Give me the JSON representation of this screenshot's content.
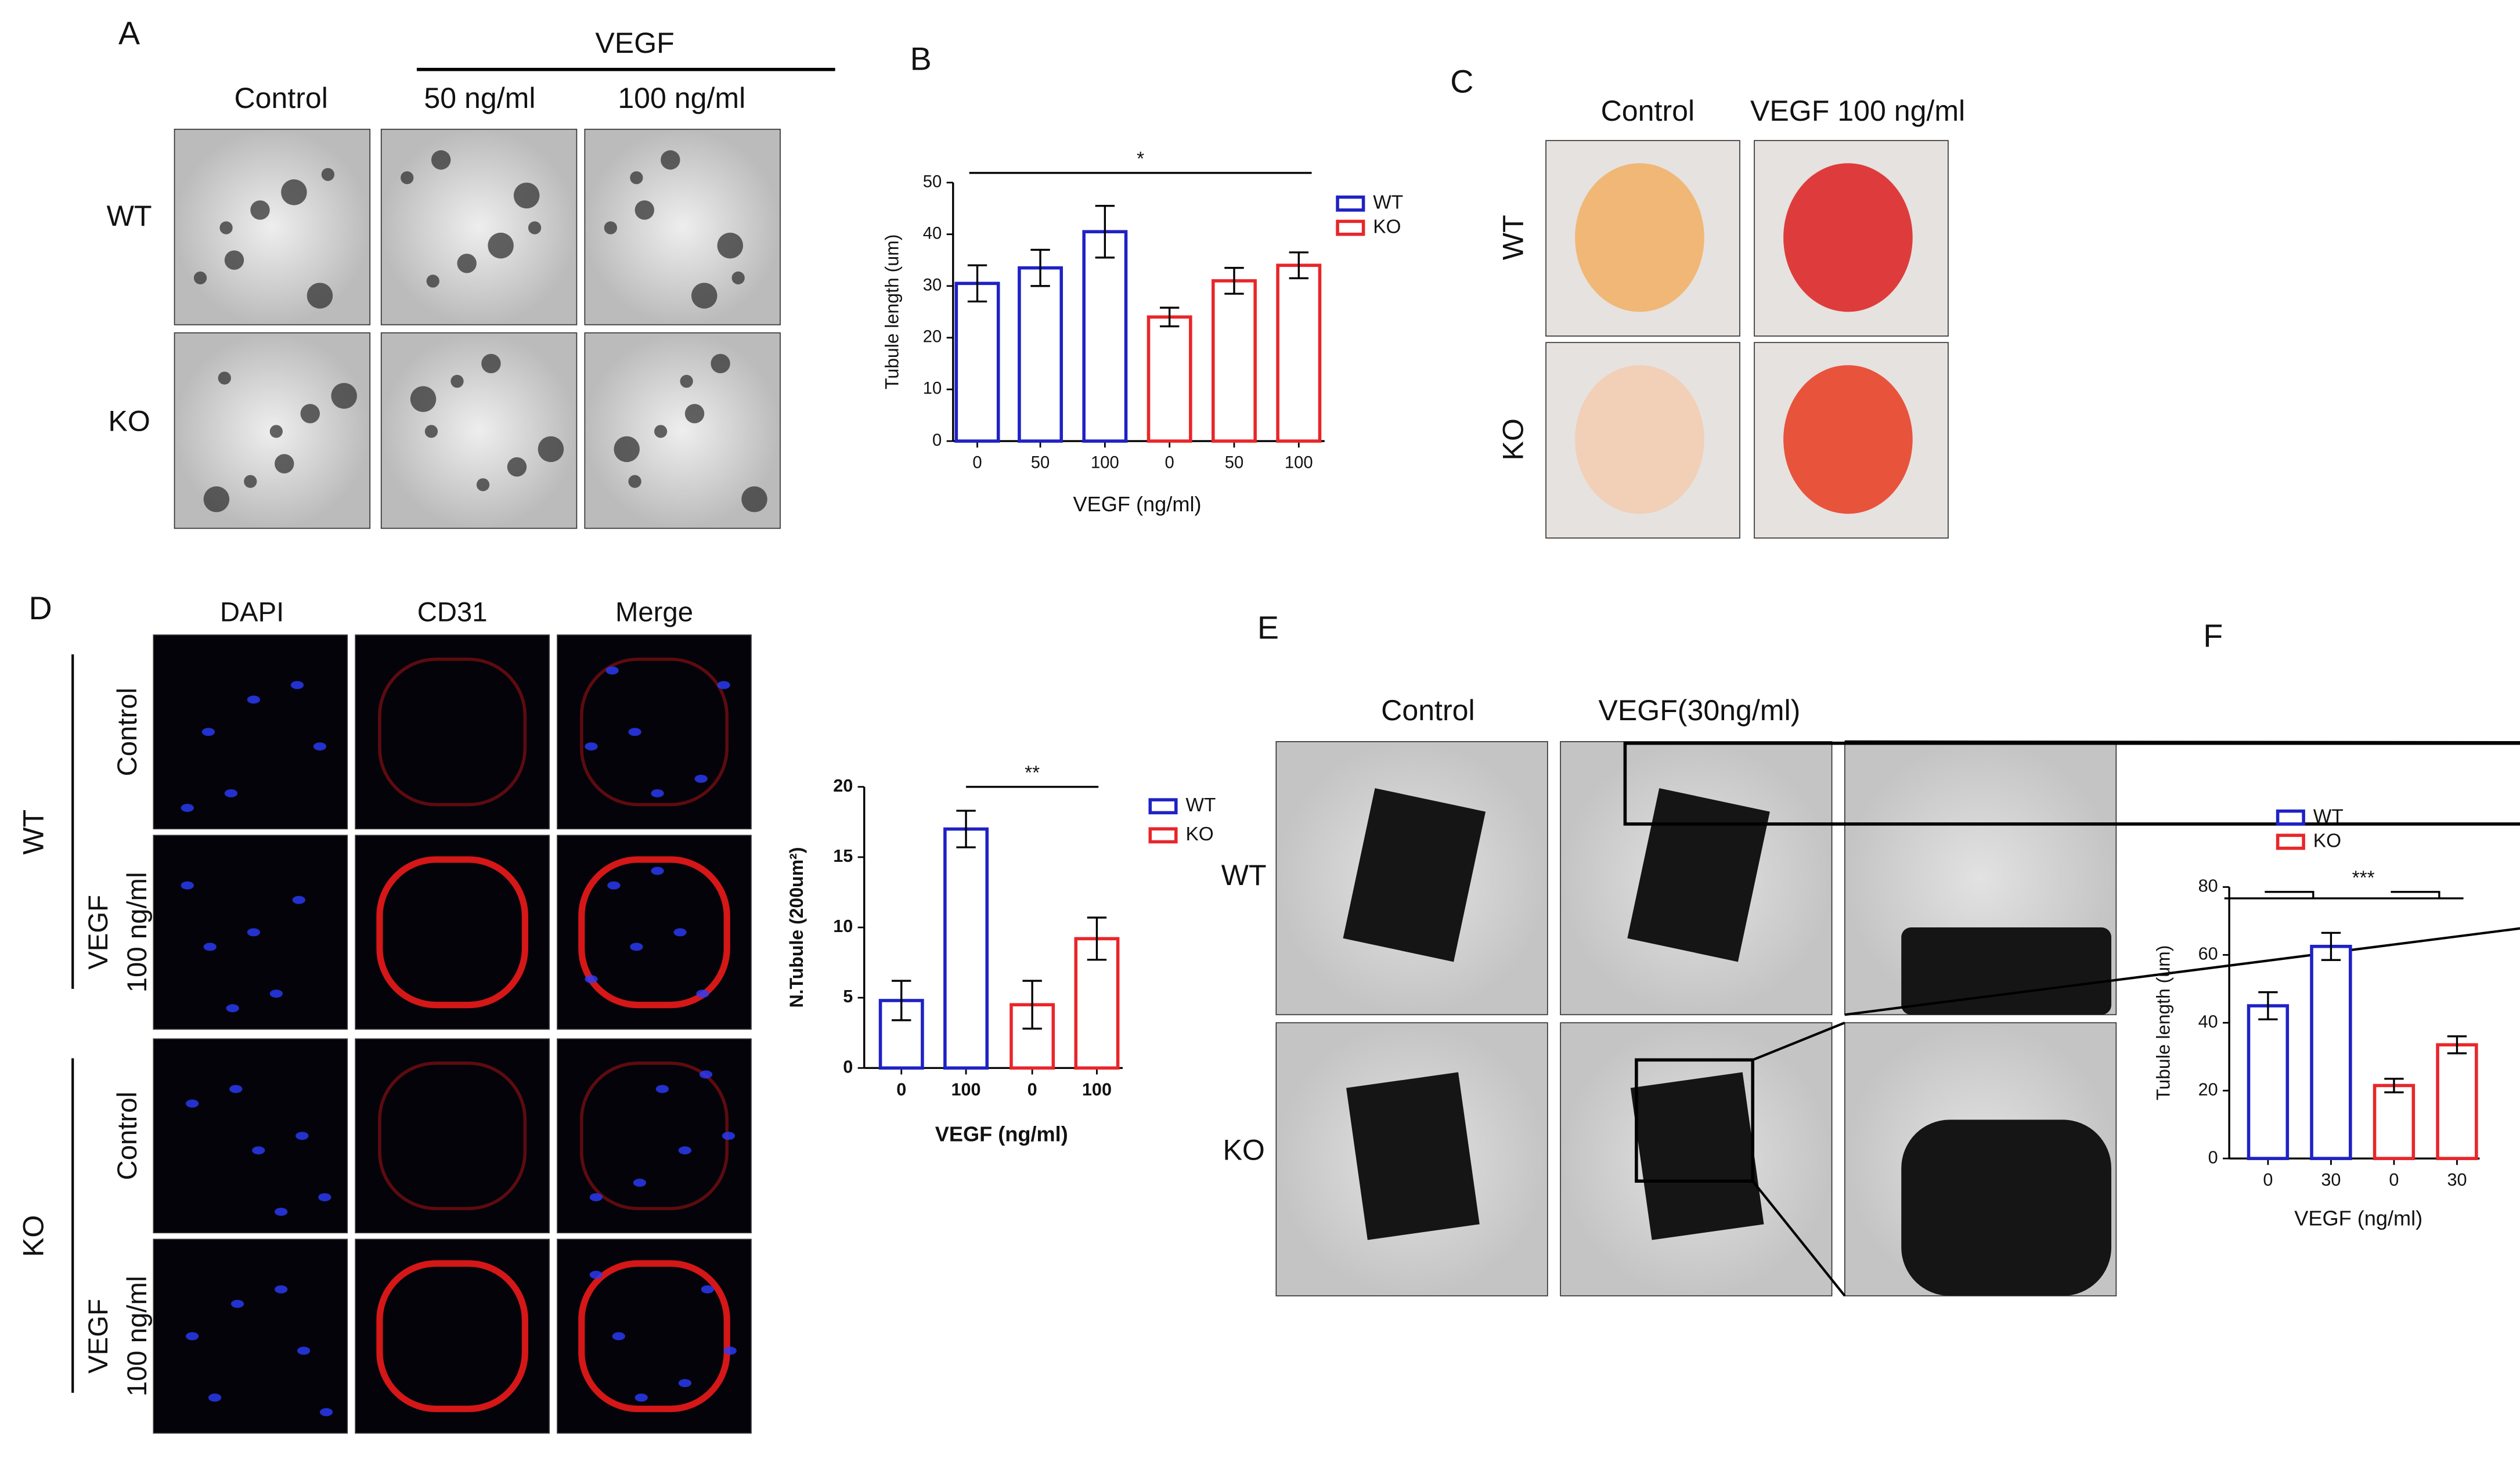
{
  "panels": {
    "labels": [
      "A",
      "B",
      "C",
      "D",
      "E",
      "F"
    ]
  },
  "panel_a": {
    "group": "VEGF",
    "columns": [
      "Control",
      "50 ng/ml",
      "100 ng/ml"
    ],
    "rows": [
      "WT",
      "KO"
    ]
  },
  "panel_c": {
    "columns": [
      "Control",
      "VEGF 100 ng/ml"
    ],
    "rows": [
      "WT",
      "KO"
    ]
  },
  "panel_d": {
    "columns": [
      "DAPI",
      "CD31",
      "Merge"
    ],
    "groups": [
      {
        "name": "WT",
        "rows": [
          {
            "lines": [
              "Control"
            ]
          },
          {
            "lines": [
              "VEGF",
              "100 ng/ml"
            ]
          }
        ]
      },
      {
        "name": "KO",
        "rows": [
          {
            "lines": [
              "Control"
            ]
          },
          {
            "lines": [
              "VEGF",
              "100 ng/ml"
            ]
          }
        ]
      }
    ]
  },
  "panel_e": {
    "columns": [
      "Control",
      "VEGF(30ng/ml)"
    ],
    "rows": [
      "WT",
      "KO"
    ]
  },
  "chart_data": [
    {
      "type": "bar",
      "ylabel": "Tubule length (um)",
      "xlabel": "VEGF (ng/ml)",
      "annotation": "*",
      "categories": [
        "0",
        "50",
        "100",
        "0",
        "50",
        "100"
      ],
      "series": [
        {
          "name": "WT",
          "color": "#1f22c4",
          "values": [
            30.5,
            33.5,
            40.5,
            null,
            null,
            null
          ],
          "errors": [
            3.5,
            3.5,
            5,
            null,
            null,
            null
          ]
        },
        {
          "name": "KO",
          "color": "#e8262a",
          "values": [
            null,
            null,
            null,
            24,
            31,
            34
          ],
          "errors": [
            null,
            null,
            null,
            1.8,
            2.5,
            2.5
          ]
        }
      ],
      "ylim": [
        0,
        50
      ],
      "yticks": [
        0,
        10,
        20,
        30,
        40,
        50
      ]
    },
    {
      "type": "bar",
      "ylabel": "N.Tubule (200um²)",
      "xlabel": "VEGF (ng/ml)",
      "annotation": "**",
      "categories": [
        "0",
        "100",
        "0",
        "100"
      ],
      "series": [
        {
          "name": "WT",
          "color": "#1f22c4",
          "values": [
            4.8,
            17,
            null,
            null
          ],
          "errors": [
            1.4,
            1.3,
            null,
            null
          ]
        },
        {
          "name": "KO",
          "color": "#e8262a",
          "values": [
            null,
            null,
            4.5,
            9.2
          ],
          "errors": [
            null,
            null,
            1.7,
            1.5
          ]
        }
      ],
      "ylim": [
        0,
        20
      ],
      "yticks": [
        0,
        5,
        10,
        15,
        20
      ]
    },
    {
      "type": "bar",
      "ylabel": "Tubule length (um)",
      "xlabel": "VEGF (ng/ml)",
      "annotation": "***",
      "categories": [
        "0",
        "30",
        "0",
        "30"
      ],
      "series": [
        {
          "name": "WT",
          "color": "#1f22c4",
          "values": [
            45,
            62.5,
            null,
            null
          ],
          "errors": [
            4,
            4,
            null,
            null
          ]
        },
        {
          "name": "KO",
          "color": "#e8262a",
          "values": [
            null,
            null,
            21.5,
            33.5
          ],
          "errors": [
            null,
            null,
            2,
            2.5
          ]
        }
      ],
      "ylim": [
        0,
        80
      ],
      "yticks": [
        0,
        20,
        40,
        60,
        80
      ]
    }
  ]
}
